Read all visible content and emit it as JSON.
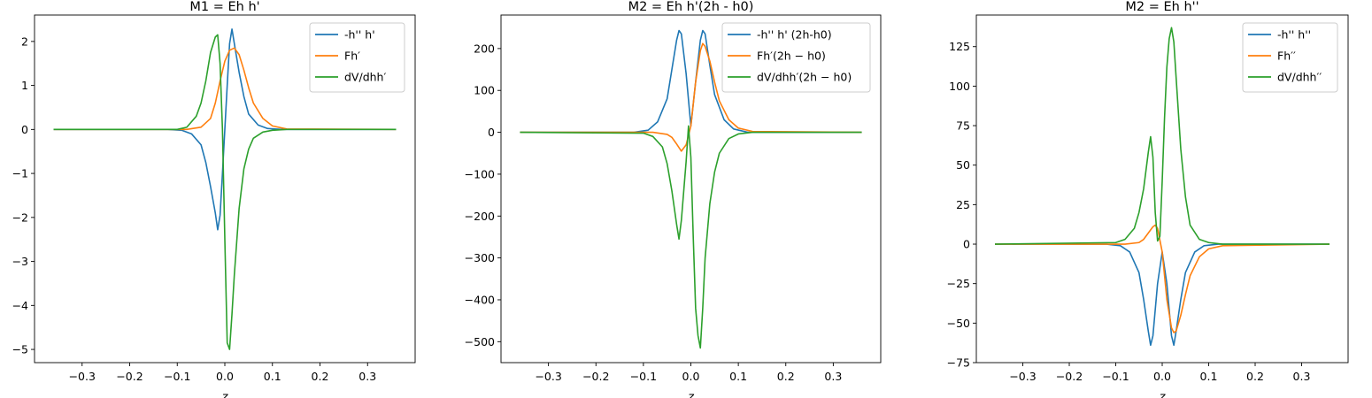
{
  "chart_data": [
    {
      "type": "line",
      "title": "M1 = Eh h'",
      "xlabel": "z",
      "ylabel": "",
      "xlim": [
        -0.4,
        0.4
      ],
      "ylim": [
        -5.3,
        2.6
      ],
      "xticks": [
        "−0.3",
        "−0.2",
        "−0.1",
        "0.0",
        "0.1",
        "0.2",
        "0.3"
      ],
      "xtick_values": [
        -0.3,
        -0.2,
        -0.1,
        0.0,
        0.1,
        0.2,
        0.3
      ],
      "yticks": [
        "−5",
        "−4",
        "−3",
        "−2",
        "−1",
        "0",
        "1",
        "2"
      ],
      "ytick_values": [
        -5,
        -4,
        -3,
        -2,
        -1,
        0,
        1,
        2
      ],
      "legend_position": "top-right",
      "series": [
        {
          "name": "-h'' h'",
          "color": "#1f77b4",
          "x": [
            -0.36,
            -0.12,
            -0.09,
            -0.07,
            -0.05,
            -0.04,
            -0.03,
            -0.02,
            -0.015,
            -0.01,
            -0.005,
            0.0,
            0.005,
            0.01,
            0.015,
            0.02,
            0.03,
            0.04,
            0.05,
            0.07,
            0.09,
            0.12,
            0.36
          ],
          "y": [
            0,
            0,
            -0.02,
            -0.1,
            -0.35,
            -0.75,
            -1.3,
            -1.9,
            -2.28,
            -1.95,
            -1.0,
            0.0,
            1.0,
            1.95,
            2.28,
            1.95,
            1.3,
            0.75,
            0.35,
            0.1,
            0.02,
            0,
            0
          ]
        },
        {
          "name": "Fh′",
          "color": "#ff7f0e",
          "x": [
            -0.36,
            -0.08,
            -0.05,
            -0.03,
            -0.02,
            -0.01,
            0.0,
            0.01,
            0.02,
            0.03,
            0.04,
            0.05,
            0.06,
            0.08,
            0.1,
            0.13,
            0.36
          ],
          "y": [
            0,
            0,
            0.05,
            0.25,
            0.6,
            1.1,
            1.55,
            1.8,
            1.85,
            1.7,
            1.35,
            0.95,
            0.6,
            0.25,
            0.08,
            0.01,
            0
          ]
        },
        {
          "name": "dV/dhh′",
          "color": "#2ca02c",
          "x": [
            -0.36,
            -0.1,
            -0.08,
            -0.06,
            -0.05,
            -0.04,
            -0.03,
            -0.02,
            -0.015,
            -0.01,
            -0.005,
            0.0,
            0.005,
            0.01,
            0.015,
            0.02,
            0.03,
            0.04,
            0.05,
            0.06,
            0.08,
            0.1,
            0.13,
            0.36
          ],
          "y": [
            0,
            0,
            0.05,
            0.3,
            0.6,
            1.1,
            1.75,
            2.1,
            2.15,
            1.5,
            0.0,
            -2.5,
            -4.85,
            -5.0,
            -4.2,
            -3.3,
            -1.8,
            -0.9,
            -0.45,
            -0.2,
            -0.06,
            -0.02,
            0,
            0
          ]
        }
      ]
    },
    {
      "type": "line",
      "title": "M2 = Eh h'(2h - h0)",
      "xlabel": "z",
      "ylabel": "",
      "xlim": [
        -0.4,
        0.4
      ],
      "ylim": [
        -550,
        280
      ],
      "xticks": [
        "−0.3",
        "−0.2",
        "−0.1",
        "0.0",
        "0.1",
        "0.2",
        "0.3"
      ],
      "xtick_values": [
        -0.3,
        -0.2,
        -0.1,
        0.0,
        0.1,
        0.2,
        0.3
      ],
      "yticks": [
        "−500",
        "−400",
        "−300",
        "−200",
        "−100",
        "0",
        "100",
        "200"
      ],
      "ytick_values": [
        -500,
        -400,
        -300,
        -200,
        -100,
        0,
        100,
        200
      ],
      "legend_position": "top-right",
      "series": [
        {
          "name": "-h'' h' (2h-h0)",
          "color": "#1f77b4",
          "x": [
            -0.36,
            -0.12,
            -0.09,
            -0.07,
            -0.05,
            -0.04,
            -0.03,
            -0.025,
            -0.02,
            -0.01,
            0.0,
            0.01,
            0.02,
            0.025,
            0.03,
            0.04,
            0.05,
            0.07,
            0.09,
            0.12,
            0.36
          ],
          "y": [
            0,
            0,
            5,
            25,
            80,
            150,
            220,
            243,
            235,
            140,
            15,
            120,
            220,
            243,
            235,
            160,
            90,
            30,
            8,
            0,
            0
          ]
        },
        {
          "name": "Fh′(2h − h0)",
          "color": "#ff7f0e",
          "x": [
            -0.36,
            -0.08,
            -0.05,
            -0.04,
            -0.03,
            -0.02,
            -0.01,
            0.0,
            0.01,
            0.02,
            0.025,
            0.03,
            0.04,
            0.05,
            0.06,
            0.08,
            0.1,
            0.13,
            0.36
          ],
          "y": [
            0,
            0,
            -5,
            -12,
            -28,
            -45,
            -30,
            15,
            120,
            195,
            212,
            205,
            170,
            120,
            75,
            30,
            10,
            2,
            0
          ]
        },
        {
          "name": "dV/dhh′(2h − h0)",
          "color": "#2ca02c",
          "x": [
            -0.36,
            -0.1,
            -0.08,
            -0.06,
            -0.05,
            -0.04,
            -0.03,
            -0.025,
            -0.02,
            -0.01,
            -0.005,
            0.0,
            0.005,
            0.01,
            0.015,
            0.02,
            0.025,
            0.03,
            0.04,
            0.05,
            0.06,
            0.08,
            0.1,
            0.13,
            0.36
          ],
          "y": [
            0,
            -2,
            -10,
            -35,
            -75,
            -140,
            -220,
            -255,
            -210,
            -70,
            15,
            -60,
            -250,
            -420,
            -485,
            -515,
            -420,
            -300,
            -170,
            -95,
            -50,
            -15,
            -4,
            0,
            0
          ]
        }
      ]
    },
    {
      "type": "line",
      "title": "M2 = Eh h''",
      "xlabel": "z",
      "ylabel": "",
      "xlim": [
        -0.4,
        0.4
      ],
      "ylim": [
        -75,
        145
      ],
      "xticks": [
        "−0.3",
        "−0.2",
        "−0.1",
        "0.0",
        "0.1",
        "0.2",
        "0.3"
      ],
      "xtick_values": [
        -0.3,
        -0.2,
        -0.1,
        0.0,
        0.1,
        0.2,
        0.3
      ],
      "yticks": [
        "−75",
        "−50",
        "−25",
        "0",
        "25",
        "50",
        "75",
        "100",
        "125"
      ],
      "ytick_values": [
        -75,
        -50,
        -25,
        0,
        25,
        50,
        75,
        100,
        125
      ],
      "legend_position": "top-right",
      "series": [
        {
          "name": "-h'' h''",
          "color": "#1f77b4",
          "x": [
            -0.36,
            -0.12,
            -0.09,
            -0.07,
            -0.05,
            -0.04,
            -0.03,
            -0.025,
            -0.02,
            -0.01,
            0.0,
            0.01,
            0.02,
            0.025,
            0.03,
            0.04,
            0.05,
            0.07,
            0.09,
            0.12,
            0.36
          ],
          "y": [
            0,
            0,
            -1,
            -5,
            -18,
            -35,
            -55,
            -64,
            -58,
            -25,
            -5,
            -25,
            -58,
            -64,
            -55,
            -35,
            -18,
            -5,
            -1,
            0,
            0
          ]
        },
        {
          "name": "Fh′′",
          "color": "#ff7f0e",
          "x": [
            -0.36,
            -0.08,
            -0.05,
            -0.04,
            -0.03,
            -0.02,
            -0.015,
            -0.01,
            0.0,
            0.01,
            0.02,
            0.025,
            0.03,
            0.04,
            0.05,
            0.06,
            0.08,
            0.1,
            0.13,
            0.36
          ],
          "y": [
            0,
            0,
            1,
            3,
            7,
            11,
            12,
            10,
            -5,
            -35,
            -53,
            -56,
            -55,
            -45,
            -32,
            -20,
            -8,
            -3,
            -1,
            0
          ]
        },
        {
          "name": "dV/dhh′′",
          "color": "#2ca02c",
          "x": [
            -0.36,
            -0.1,
            -0.08,
            -0.06,
            -0.05,
            -0.04,
            -0.03,
            -0.025,
            -0.02,
            -0.015,
            -0.01,
            -0.005,
            0.0,
            0.005,
            0.01,
            0.015,
            0.02,
            0.025,
            0.03,
            0.04,
            0.05,
            0.06,
            0.08,
            0.1,
            0.13,
            0.36
          ],
          "y": [
            0,
            1,
            3,
            10,
            20,
            35,
            58,
            68,
            55,
            20,
            2,
            5,
            40,
            80,
            112,
            130,
            137,
            128,
            105,
            60,
            30,
            12,
            3,
            1,
            0,
            0
          ]
        }
      ]
    }
  ]
}
